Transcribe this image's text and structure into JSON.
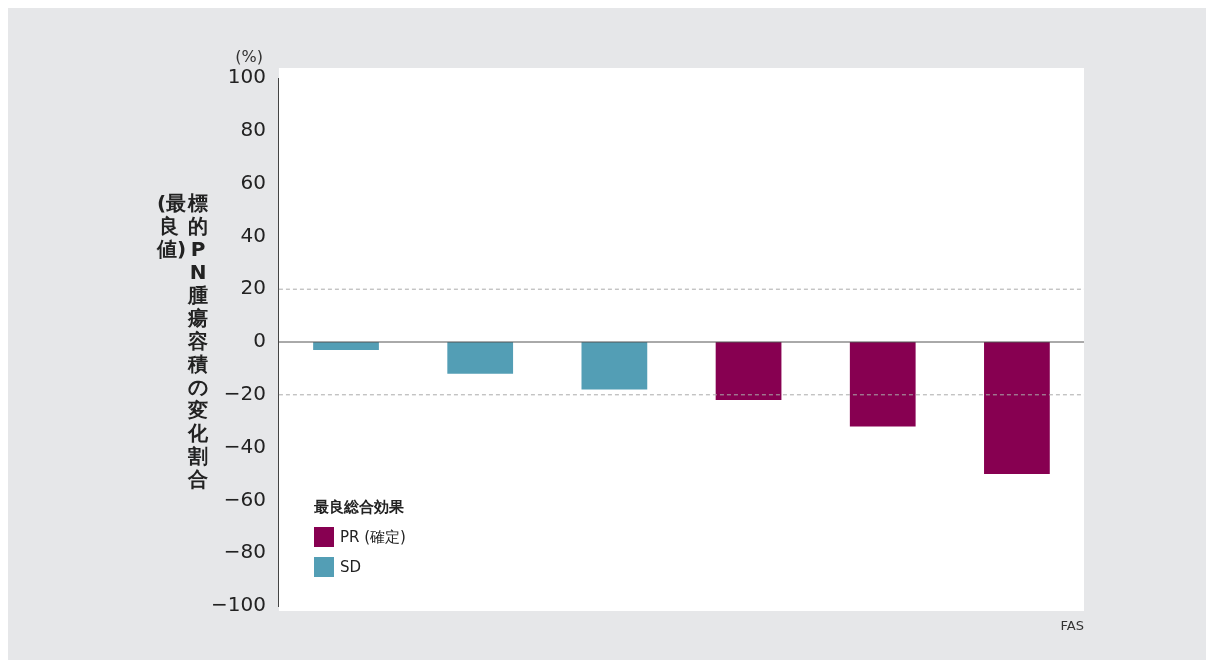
{
  "chart_data": {
    "type": "bar",
    "ylabel": "標的PN腫瘍容積の変化割合(最良値)",
    "legend_title": "最良総合効果",
    "categories": [
      null,
      null,
      null,
      null,
      null,
      null
    ],
    "series": [
      {
        "name": "PR (確定)",
        "color": "#870051",
        "values": [
          null,
          null,
          null,
          -22,
          -32,
          -50
        ]
      },
      {
        "name": "SD",
        "color": "#539eb5",
        "values": [
          -3,
          -12,
          -18,
          null,
          null,
          null
        ]
      }
    ],
    "ylim": [
      -100,
      100
    ],
    "yticks": [
      -100,
      -80,
      -60,
      -40,
      -20,
      0,
      20,
      40,
      60,
      80,
      100
    ],
    "ref_lines": [
      {
        "axis": "y",
        "value": 20,
        "color": "#aaaaaa",
        "line_style": "dashed"
      },
      {
        "axis": "y",
        "value": -20,
        "color": "#aaaaaa",
        "line_style": "dashed"
      },
      {
        "axis": "y",
        "value": 0,
        "color": "#555555",
        "line_style": "solid"
      }
    ],
    "grid": false,
    "legend": "bottom left",
    "annotations": [
      "(%)",
      "FAS"
    ]
  }
}
